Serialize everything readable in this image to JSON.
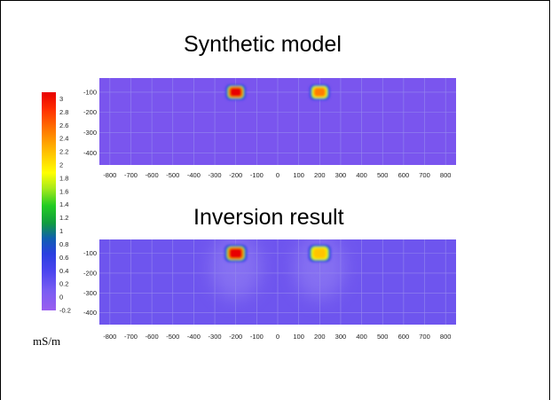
{
  "colorbar": {
    "labels": [
      "3",
      "2.8",
      "2.6",
      "2.4",
      "2.2",
      "2",
      "1.8",
      "1.6",
      "1.4",
      "1.2",
      "1",
      "0.8",
      "0.6",
      "0.4",
      "0.2",
      "0",
      "-0.2"
    ],
    "min": -0.2,
    "max": 3.1,
    "unit": "mS/m"
  },
  "chart_data": [
    {
      "type": "heatmap",
      "title": "Synthetic model",
      "xticks": [
        "-800",
        "-700",
        "-600",
        "-500",
        "-400",
        "-300",
        "-200",
        "-100",
        "0",
        "100",
        "200",
        "300",
        "400",
        "500",
        "600",
        "700",
        "800"
      ],
      "yticks": [
        "-100",
        "-200",
        "-300",
        "-400"
      ],
      "xlim": [
        -850,
        850
      ],
      "ylim": [
        -460,
        -30
      ],
      "background_value": -0.2,
      "anomalies": [
        {
          "x_center": -200,
          "y_center": -100,
          "width": 100,
          "height": 80,
          "value": 3.0
        },
        {
          "x_center": 200,
          "y_center": -100,
          "width": 100,
          "height": 80,
          "value": 2.2
        }
      ]
    },
    {
      "type": "heatmap",
      "title": "Inversion result",
      "xticks": [
        "-800",
        "-700",
        "-600",
        "-500",
        "-400",
        "-300",
        "-200",
        "-100",
        "0",
        "100",
        "200",
        "300",
        "400",
        "500",
        "600",
        "700",
        "800"
      ],
      "yticks": [
        "-100",
        "-200",
        "-300",
        "-400"
      ],
      "xlim": [
        -850,
        850
      ],
      "ylim": [
        -460,
        -30
      ],
      "background_value": 0.0,
      "anomalies": [
        {
          "x_center": -200,
          "y_center": -100,
          "width": 110,
          "height": 90,
          "value": 3.0
        },
        {
          "x_center": 200,
          "y_center": -100,
          "width": 110,
          "height": 90,
          "value": 2.1
        }
      ]
    }
  ]
}
